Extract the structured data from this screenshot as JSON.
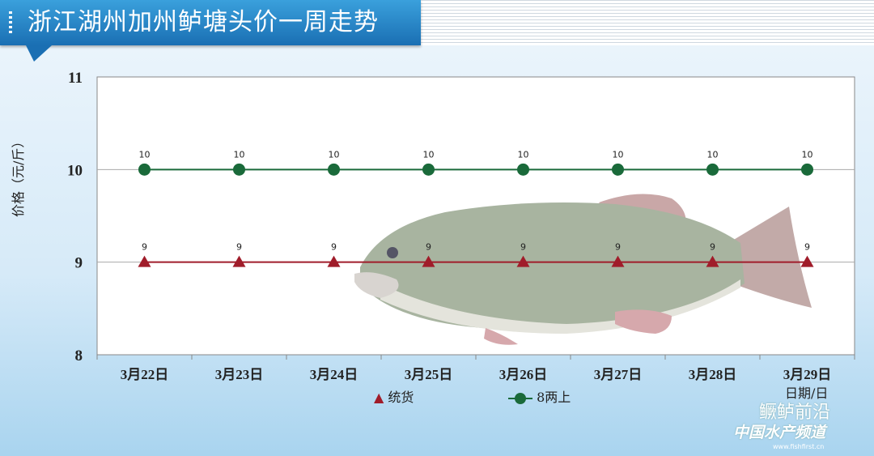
{
  "title": "浙江湖州加州鲈塘头价一周走势",
  "watermark": {
    "line1": "鳜鲈前沿",
    "line2": "中国水产频道",
    "url": "www.fishfirst.cn"
  },
  "chart_data": {
    "type": "line",
    "title": "浙江湖州加州鲈塘头价一周走势",
    "xlabel": "日期/日",
    "ylabel": "价格（元/斤）",
    "categories": [
      "3月22日",
      "3月23日",
      "3月24日",
      "3月25日",
      "3月26日",
      "3月27日",
      "3月28日",
      "3月29日"
    ],
    "ylim": [
      8,
      11
    ],
    "yticks": [
      8,
      9,
      10,
      11
    ],
    "grid": true,
    "legend_position": "bottom",
    "series": [
      {
        "name": "统货",
        "values": [
          9,
          9,
          9,
          9,
          9,
          9,
          9,
          9
        ],
        "color": "#a01c2a",
        "marker": "triangle"
      },
      {
        "name": "8两上",
        "values": [
          10,
          10,
          10,
          10,
          10,
          10,
          10,
          10
        ],
        "color": "#1a6a3a",
        "marker": "circle"
      }
    ]
  }
}
